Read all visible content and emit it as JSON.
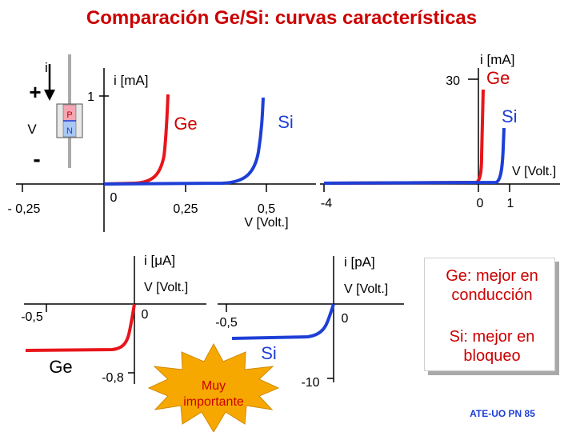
{
  "title": "Comparación Ge/Si: curvas características",
  "colors": {
    "title": "#cc0000",
    "ge": "#e8151b",
    "si": "#1e3fd6",
    "axis": "#000000",
    "star": "#f7a800",
    "star_text": "#cc0000"
  },
  "diode": {
    "current_label": "i",
    "plus": "+",
    "minus": "-",
    "voltage_label": "V",
    "p_label": "P",
    "n_label": "N"
  },
  "top_left": {
    "ylabel": "i [mA]",
    "ytick": "1",
    "x_origin": "0",
    "x_neg": "- 0,25",
    "x_025": "0,25",
    "x_05": "0,5",
    "xunit": "V [Volt.]",
    "ge_label": "Ge",
    "si_label": "Si"
  },
  "top_right": {
    "ylabel": "i [mA]",
    "ytick": "30",
    "xlabel": "V [Volt.]",
    "x_neg": "-4",
    "x_origin": "0",
    "x_pos": "1",
    "ge_label": "Ge",
    "si_label": "Si"
  },
  "bottom_left": {
    "ylabel": "i [μA]",
    "xlabel": "V [Volt.]",
    "x_origin": "0",
    "x_neg": "-0,5",
    "y_tick": "-0,8",
    "ge_label": "Ge"
  },
  "bottom_right": {
    "ylabel": "i [pA]",
    "xlabel": "V [Volt.]",
    "x_origin": "0",
    "x_neg": "-0,5",
    "y_tick": "-10",
    "si_label": "Si"
  },
  "star_text": {
    "line1": "Muy",
    "line2": "importante"
  },
  "conclusion": {
    "ge_line1": "Ge: mejor en",
    "ge_line2": "conducción",
    "si_line1": "Si: mejor en",
    "si_line2": "bloqueo"
  },
  "footer": "ATE-UO PN 85"
}
